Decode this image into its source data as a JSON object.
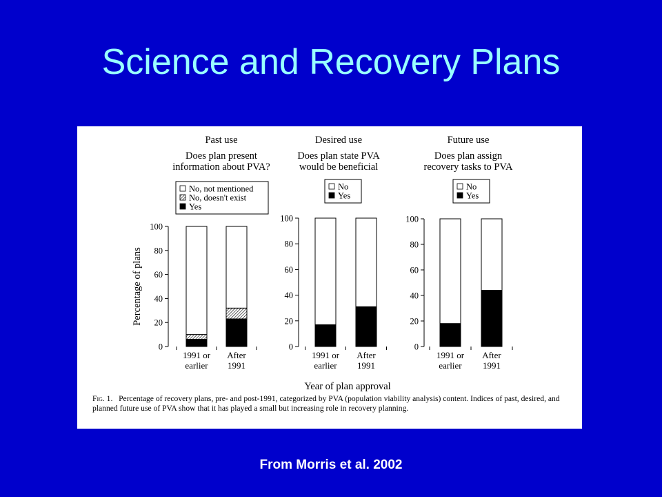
{
  "slide": {
    "title": "Science and Recovery Plans",
    "credit": "From Morris et al. 2002"
  },
  "figure": {
    "caption_label": "Fig. 1.",
    "caption_text": "Percentage of recovery plans, pre- and post-1991, categorized by PVA (population viability analysis) content. Indices of past, desired, and planned future use of PVA show that it has played a small but increasing role in recovery planning.",
    "shared_xlabel": "Year of plan approval",
    "shared_ylabel": "Percentage of plans"
  },
  "colors": {
    "background": "#0000cc",
    "title": "#99ffff",
    "yes": "#000000",
    "no": "#ffffff",
    "doesnt_exist": "hatched"
  },
  "chart_data": [
    {
      "type": "bar",
      "stacked": true,
      "panel_title": "Past use",
      "question": [
        "Does plan present",
        "information about PVA?"
      ],
      "categories": [
        [
          "1991 or",
          "earlier"
        ],
        [
          "After",
          "1991"
        ]
      ],
      "ylim": [
        0,
        100
      ],
      "yticks": [
        0,
        20,
        40,
        60,
        80,
        100
      ],
      "ylabel": "Percentage of plans",
      "series": [
        {
          "name": "Yes",
          "values": [
            6,
            23
          ]
        },
        {
          "name": "No, doesn't exist",
          "values": [
            4,
            9
          ]
        },
        {
          "name": "No, not mentioned",
          "values": [
            90,
            68
          ]
        }
      ],
      "legend": [
        "No, not mentioned",
        "No, doesn't exist",
        "Yes"
      ]
    },
    {
      "type": "bar",
      "stacked": true,
      "panel_title": "Desired use",
      "question": [
        "Does plan state PVA",
        "would be beneficial"
      ],
      "categories": [
        [
          "1991 or",
          "earlier"
        ],
        [
          "After",
          "1991"
        ]
      ],
      "ylim": [
        0,
        100
      ],
      "yticks": [
        0,
        20,
        40,
        60,
        80,
        100
      ],
      "series": [
        {
          "name": "Yes",
          "values": [
            17,
            31
          ]
        },
        {
          "name": "No",
          "values": [
            83,
            69
          ]
        }
      ],
      "legend": [
        "No",
        "Yes"
      ]
    },
    {
      "type": "bar",
      "stacked": true,
      "panel_title": "Future use",
      "question": [
        "Does plan assign",
        "recovery tasks to PVA"
      ],
      "categories": [
        [
          "1991 or",
          "earlier"
        ],
        [
          "After",
          "1991"
        ]
      ],
      "ylim": [
        0,
        100
      ],
      "yticks": [
        0,
        20,
        40,
        60,
        80,
        100
      ],
      "series": [
        {
          "name": "Yes",
          "values": [
            18,
            44
          ]
        },
        {
          "name": "No",
          "values": [
            82,
            56
          ]
        }
      ],
      "legend": [
        "No",
        "Yes"
      ]
    }
  ]
}
